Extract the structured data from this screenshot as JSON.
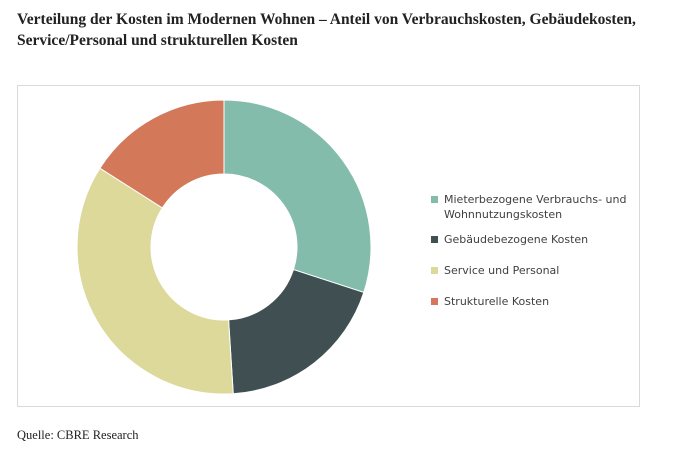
{
  "chart_data": {
    "type": "pie",
    "donut": true,
    "title": "Verteilung der Kosten im Modernen Wohnen – Anteil von Verbrauchskosten, Gebäudekosten, Service/Personal und strukturellen Kosten",
    "categories": [
      "Mieterbezogene Verbrauchs- und Wohnnutzungskosten",
      "Gebäudebezogene Kosten",
      "Service und Personal",
      "Strukturelle Kosten"
    ],
    "values": [
      30,
      19,
      35,
      16
    ],
    "colors": [
      "#84bcab",
      "#3f4f52",
      "#dcd99b",
      "#d4785a"
    ],
    "legend": "right",
    "source": "Quelle: CBRE Research"
  }
}
